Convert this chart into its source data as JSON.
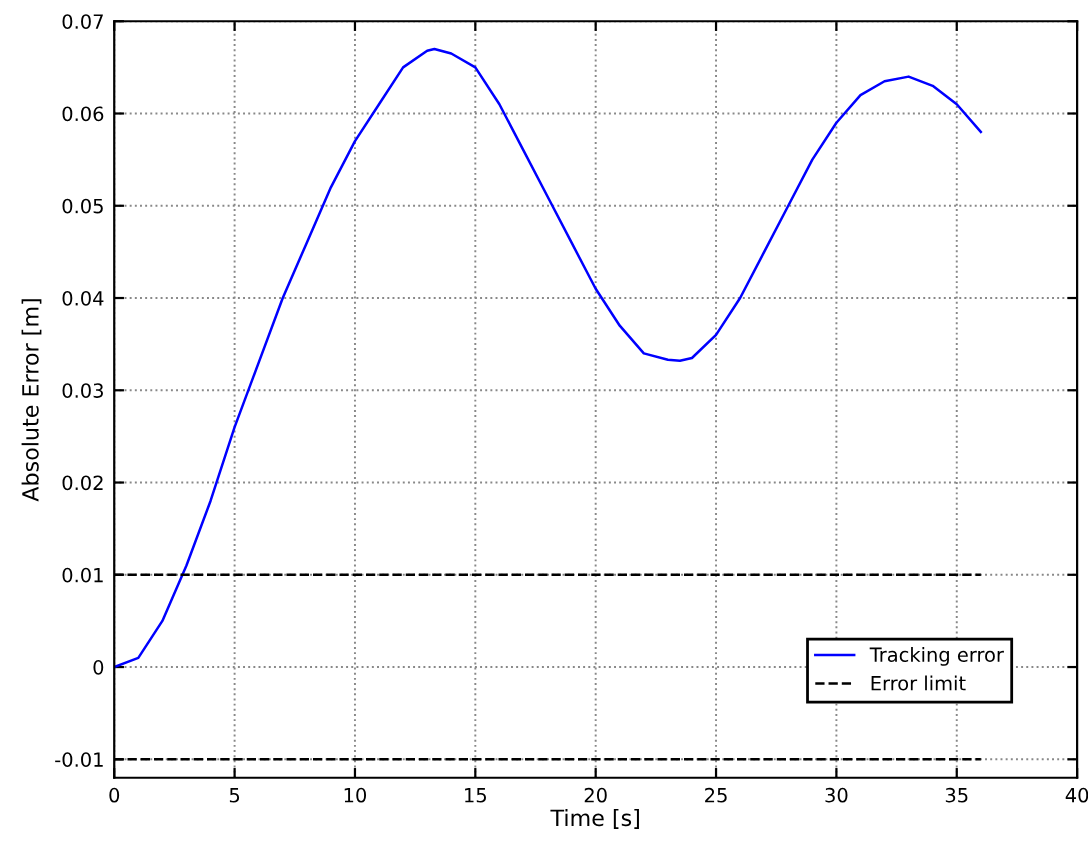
{
  "chart_data": {
    "type": "line",
    "xlabel": "Time [s]",
    "ylabel": "Absolute Error [m]",
    "xlim": [
      0,
      40
    ],
    "ylim": [
      -0.012,
      0.07
    ],
    "xticks": [
      0,
      5,
      10,
      15,
      20,
      25,
      30,
      35,
      40
    ],
    "yticks": [
      {
        "value": -0.01,
        "label": "-0.01"
      },
      0,
      0.01,
      0.02,
      0.03,
      0.04,
      0.05,
      0.06,
      0.07
    ],
    "grid": true,
    "legend": "bottom right",
    "line_style": "solid",
    "series": [
      {
        "name": "Tracking error",
        "color": "#0000ff",
        "x": [
          0,
          1,
          2,
          3,
          4,
          5,
          6,
          7,
          8,
          9,
          10,
          11,
          12,
          13,
          13.3,
          14,
          15,
          16,
          17,
          18,
          19,
          20,
          21,
          22,
          23,
          23.5,
          24,
          25,
          26,
          27,
          28,
          29,
          30,
          31,
          32,
          33,
          34,
          35,
          36
        ],
        "values": [
          0,
          0.001,
          0.005,
          0.011,
          0.018,
          0.026,
          0.033,
          0.04,
          0.046,
          0.052,
          0.057,
          0.061,
          0.065,
          0.0668,
          0.067,
          0.0665,
          0.065,
          0.061,
          0.056,
          0.051,
          0.046,
          0.041,
          0.037,
          0.034,
          0.0333,
          0.0332,
          0.0335,
          0.036,
          0.04,
          0.045,
          0.05,
          0.055,
          0.059,
          0.062,
          0.0635,
          0.064,
          0.063,
          0.061,
          0.058
        ]
      },
      {
        "name": "Error limit",
        "color": "#000000",
        "line_style": "dashed",
        "x": [
          0,
          36
        ],
        "values": [
          0.01,
          0.01
        ]
      },
      {
        "color": "#000000",
        "line_style": "dashed",
        "x": [
          0,
          36
        ],
        "values": [
          -0.01,
          -0.01
        ]
      }
    ]
  }
}
